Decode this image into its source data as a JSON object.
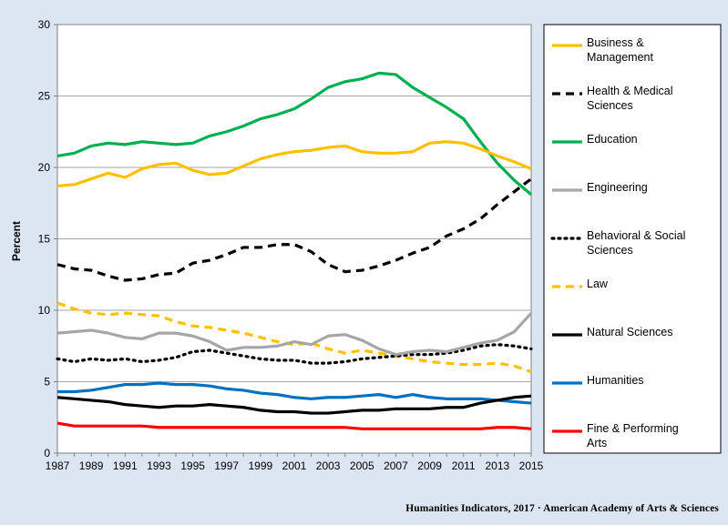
{
  "chart_data": {
    "type": "line",
    "title": "",
    "xlabel": "",
    "ylabel": "Percent",
    "xlim": [
      1987,
      2015
    ],
    "ylim": [
      0,
      30
    ],
    "y_ticks": [
      0,
      5,
      10,
      15,
      20,
      25,
      30
    ],
    "x_ticks": [
      1987,
      1989,
      1991,
      1993,
      1995,
      1997,
      1999,
      2001,
      2003,
      2005,
      2007,
      2009,
      2011,
      2013,
      2015
    ],
    "grid": "horizontal",
    "legend_position": "right",
    "x": [
      1987,
      1988,
      1989,
      1990,
      1991,
      1992,
      1993,
      1994,
      1995,
      1996,
      1997,
      1998,
      1999,
      2000,
      2001,
      2002,
      2003,
      2004,
      2005,
      2006,
      2007,
      2008,
      2009,
      2010,
      2011,
      2012,
      2013,
      2014,
      2015
    ],
    "series": [
      {
        "name": "Business & Management",
        "color": "#ffc000",
        "dash": "solid",
        "values": [
          18.7,
          18.8,
          19.2,
          19.6,
          19.3,
          19.9,
          20.2,
          20.3,
          19.8,
          19.5,
          19.6,
          20.1,
          20.6,
          20.9,
          21.1,
          21.2,
          21.4,
          21.5,
          21.1,
          21.0,
          21.0,
          21.1,
          21.7,
          21.8,
          21.7,
          21.3,
          20.8,
          20.4,
          19.9
        ]
      },
      {
        "name": "Health & Medical Sciences",
        "color": "#000000",
        "dash": "dashed",
        "values": [
          13.2,
          12.9,
          12.8,
          12.4,
          12.1,
          12.2,
          12.5,
          12.6,
          13.3,
          13.5,
          13.9,
          14.4,
          14.4,
          14.6,
          14.6,
          14.1,
          13.2,
          12.7,
          12.8,
          13.1,
          13.5,
          14.0,
          14.4,
          15.2,
          15.7,
          16.4,
          17.4,
          18.3,
          19.2
        ]
      },
      {
        "name": "Education",
        "color": "#00b050",
        "dash": "solid",
        "values": [
          20.8,
          21.0,
          21.5,
          21.7,
          21.6,
          21.8,
          21.7,
          21.6,
          21.7,
          22.2,
          22.5,
          22.9,
          23.4,
          23.7,
          24.1,
          24.8,
          25.6,
          26.0,
          26.2,
          26.6,
          26.5,
          25.6,
          24.9,
          24.2,
          23.4,
          21.8,
          20.3,
          19.1,
          18.1
        ]
      },
      {
        "name": "Engineering",
        "color": "#a6a6a6",
        "dash": "solid",
        "values": [
          8.4,
          8.5,
          8.6,
          8.4,
          8.1,
          8.0,
          8.4,
          8.4,
          8.2,
          7.8,
          7.2,
          7.4,
          7.4,
          7.5,
          7.8,
          7.6,
          8.2,
          8.3,
          7.9,
          7.3,
          6.9,
          7.1,
          7.2,
          7.1,
          7.4,
          7.7,
          7.9,
          8.5,
          9.8
        ]
      },
      {
        "name": "Behavioral & Social Sciences",
        "color": "#000000",
        "dash": "dotted",
        "values": [
          6.6,
          6.4,
          6.6,
          6.5,
          6.6,
          6.4,
          6.5,
          6.7,
          7.1,
          7.2,
          7.0,
          6.8,
          6.6,
          6.5,
          6.5,
          6.3,
          6.3,
          6.4,
          6.6,
          6.7,
          6.8,
          6.9,
          6.9,
          7.0,
          7.2,
          7.5,
          7.6,
          7.5,
          7.3
        ]
      },
      {
        "name": "Law",
        "color": "#ffc000",
        "dash": "dashed",
        "values": [
          10.5,
          10.1,
          9.8,
          9.7,
          9.8,
          9.7,
          9.6,
          9.2,
          8.9,
          8.8,
          8.6,
          8.4,
          8.1,
          7.8,
          7.6,
          7.7,
          7.3,
          7.0,
          7.2,
          7.0,
          6.8,
          6.6,
          6.4,
          6.3,
          6.2,
          6.2,
          6.3,
          6.1,
          5.7
        ]
      },
      {
        "name": "Natural Sciences",
        "color": "#000000",
        "dash": "solid",
        "values": [
          3.9,
          3.8,
          3.7,
          3.6,
          3.4,
          3.3,
          3.2,
          3.3,
          3.3,
          3.4,
          3.3,
          3.2,
          3.0,
          2.9,
          2.9,
          2.8,
          2.8,
          2.9,
          3.0,
          3.0,
          3.1,
          3.1,
          3.1,
          3.2,
          3.2,
          3.5,
          3.7,
          3.9,
          4.0
        ]
      },
      {
        "name": "Humanities",
        "color": "#0070c0",
        "dash": "solid",
        "values": [
          4.3,
          4.3,
          4.4,
          4.6,
          4.8,
          4.8,
          4.9,
          4.8,
          4.8,
          4.7,
          4.5,
          4.4,
          4.2,
          4.1,
          3.9,
          3.8,
          3.9,
          3.9,
          4.0,
          4.1,
          3.9,
          4.1,
          3.9,
          3.8,
          3.8,
          3.8,
          3.7,
          3.6,
          3.5
        ]
      },
      {
        "name": "Fine & Performing Arts",
        "color": "#ff0000",
        "dash": "solid",
        "values": [
          2.1,
          1.9,
          1.9,
          1.9,
          1.9,
          1.9,
          1.8,
          1.8,
          1.8,
          1.8,
          1.8,
          1.8,
          1.8,
          1.8,
          1.8,
          1.8,
          1.8,
          1.8,
          1.7,
          1.7,
          1.7,
          1.7,
          1.7,
          1.7,
          1.7,
          1.7,
          1.8,
          1.8,
          1.7
        ]
      }
    ]
  },
  "credit": "Humanities  Indicators, 2017 · American Academy of Arts & Sciences"
}
